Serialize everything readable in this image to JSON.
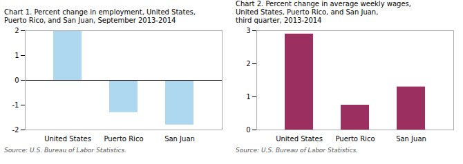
{
  "chart_data": [
    {
      "type": "bar",
      "title": "Chart 1. Percent change in employment, United States,\nPuerto Rico, and San Juan, September 2013-2014",
      "categories": [
        "United States",
        "Puerto Rico",
        "San Juan"
      ],
      "values": [
        2.0,
        -1.3,
        -1.8
      ],
      "color": "#add8f0",
      "ylim": [
        -2,
        2
      ],
      "yticks": [
        -2,
        -1,
        0,
        1,
        2
      ],
      "grid": false,
      "annotations": [
        "Source: U.S. Bureau of Labor Statistics."
      ]
    },
    {
      "type": "bar",
      "title": "Chart 2. Percent change in average weekly wages,\nUnited States, Puerto Rico, and San Juan,\nthird quarter, 2013-2014",
      "categories": [
        "United States",
        "Puerto Rico",
        "San Juan"
      ],
      "values": [
        2.9,
        0.75,
        1.3
      ],
      "color": "#9b3060",
      "ylim": [
        0,
        3
      ],
      "yticks": [
        0,
        1,
        2,
        3
      ],
      "grid": false,
      "annotations": [
        "Source: U.S. Bureau of Labor Statistics."
      ]
    }
  ]
}
